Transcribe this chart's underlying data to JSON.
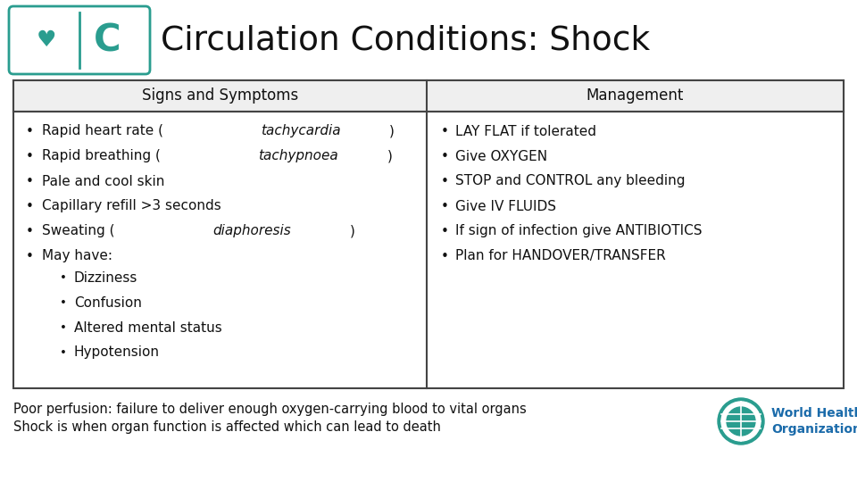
{
  "title": "Circulation Conditions: Shock",
  "teal_color": "#2A9D8F",
  "dark_color": "#111111",
  "bg_color": "#FFFFFF",
  "header_bg": "#EFEFEF",
  "table_border": "#444444",
  "col1_header": "Signs and Symptoms",
  "col2_header": "Management",
  "col1_items": [
    {
      "plain": "Rapid heart rate (",
      "italic": "tachycardia",
      "end": ")"
    },
    {
      "plain": "Rapid breathing (",
      "italic": "tachypnoea",
      "end": ")"
    },
    {
      "plain": "Pale and cool skin",
      "italic": "",
      "end": ""
    },
    {
      "plain": "Capillary refill >3 seconds",
      "italic": "",
      "end": ""
    },
    {
      "plain": "Sweating (",
      "italic": "diaphoresis",
      "end": ")"
    },
    {
      "plain": "May have:",
      "italic": "",
      "end": ""
    }
  ],
  "col1_subitems": [
    "Dizziness",
    "Confusion",
    "Altered mental status",
    "Hypotension"
  ],
  "col2_items": [
    "LAY FLAT if tolerated",
    "Give OXYGEN",
    "STOP and CONTROL any bleeding",
    "Give IV FLUIDS",
    "If sign of infection give ANTIBIOTICS",
    "Plan for HANDOVER/TRANSFER"
  ],
  "footer_line1": "Poor perfusion: failure to deliver enough oxygen-carrying blood to vital organs",
  "footer_line2": "Shock is when organ function is affected which can lead to death",
  "who_text_color": "#1B6BAA",
  "who_label_line1": "World Health",
  "who_label_line2": "Organization"
}
